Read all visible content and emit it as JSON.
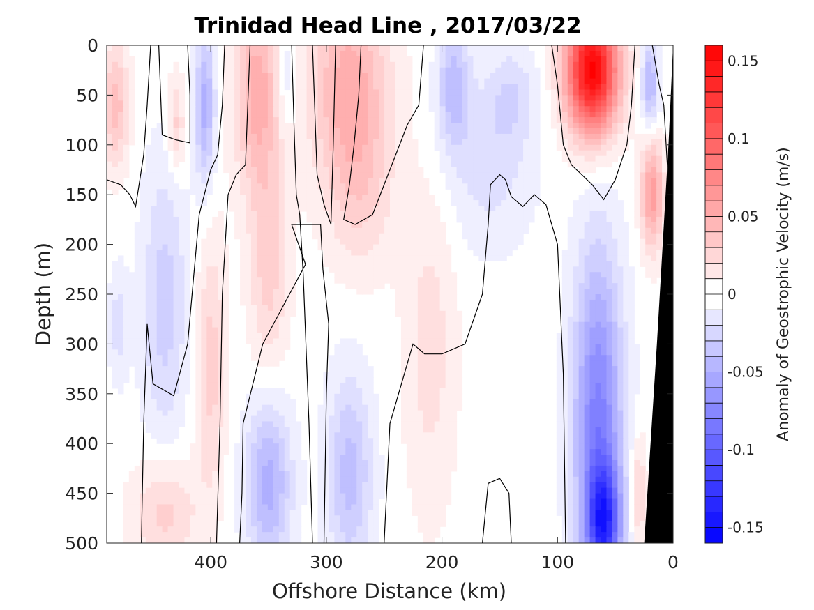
{
  "chart_data": {
    "type": "heatmap",
    "title": "Trinidad Head Line , 2017/03/22",
    "xlabel": "Offshore Distance (km)",
    "ylabel": "Depth (m)",
    "xlim": [
      490,
      0
    ],
    "ylim": [
      0,
      500
    ],
    "x_ticks": [
      "400",
      "300",
      "200",
      "100",
      "0"
    ],
    "y_ticks": [
      "0",
      "50",
      "100",
      "150",
      "200",
      "250",
      "300",
      "350",
      "400",
      "450",
      "500"
    ],
    "colorbar": {
      "label": "Anomaly of Geostrophic Velocity (m/s)",
      "range": [
        -0.16,
        0.16
      ],
      "levels": 32,
      "ticks": [
        "-0.15",
        "-0.1",
        "-0.05",
        "0",
        "0.05",
        "0.1",
        "0.15"
      ],
      "negative_color": "#0000ff",
      "zero_color": "#ffffff",
      "positive_color": "#ff0000"
    },
    "anomaly_features": [
      {
        "x": 482,
        "depth": 60,
        "value": 0.04,
        "sx": 8,
        "sd": 45
      },
      {
        "x": 430,
        "depth": 80,
        "value": 0.03,
        "sx": 5,
        "sd": 35
      },
      {
        "x": 405,
        "depth": 60,
        "value": -0.05,
        "sx": 6,
        "sd": 55
      },
      {
        "x": 360,
        "depth": 45,
        "value": 0.05,
        "sx": 14,
        "sd": 70
      },
      {
        "x": 350,
        "depth": 220,
        "value": 0.03,
        "sx": 12,
        "sd": 80
      },
      {
        "x": 335,
        "depth": 30,
        "value": -0.02,
        "sx": 6,
        "sd": 40
      },
      {
        "x": 280,
        "depth": 40,
        "value": 0.05,
        "sx": 24,
        "sd": 75
      },
      {
        "x": 270,
        "depth": 150,
        "value": 0.02,
        "sx": 20,
        "sd": 60
      },
      {
        "x": 190,
        "depth": 40,
        "value": -0.04,
        "sx": 10,
        "sd": 45
      },
      {
        "x": 160,
        "depth": 120,
        "value": -0.02,
        "sx": 28,
        "sd": 60
      },
      {
        "x": 140,
        "depth": 50,
        "value": -0.02,
        "sx": 15,
        "sd": 35
      },
      {
        "x": 70,
        "depth": 25,
        "value": 0.16,
        "sx": 16,
        "sd": 45
      },
      {
        "x": 65,
        "depth": 380,
        "value": -0.08,
        "sx": 15,
        "sd": 120
      },
      {
        "x": 60,
        "depth": 480,
        "value": -0.1,
        "sx": 10,
        "sd": 40
      },
      {
        "x": 20,
        "depth": 40,
        "value": -0.05,
        "sx": 5,
        "sd": 30
      },
      {
        "x": 18,
        "depth": 150,
        "value": 0.06,
        "sx": 7,
        "sd": 40
      },
      {
        "x": 440,
        "depth": 260,
        "value": -0.03,
        "sx": 14,
        "sd": 100
      },
      {
        "x": 440,
        "depth": 470,
        "value": 0.03,
        "sx": 20,
        "sd": 40
      },
      {
        "x": 400,
        "depth": 320,
        "value": 0.03,
        "sx": 9,
        "sd": 90
      },
      {
        "x": 350,
        "depth": 440,
        "value": -0.05,
        "sx": 14,
        "sd": 60
      },
      {
        "x": 280,
        "depth": 430,
        "value": -0.04,
        "sx": 14,
        "sd": 70
      },
      {
        "x": 210,
        "depth": 300,
        "value": 0.02,
        "sx": 16,
        "sd": 120
      },
      {
        "x": 480,
        "depth": 280,
        "value": -0.02,
        "sx": 6,
        "sd": 40
      },
      {
        "x": 30,
        "depth": 450,
        "value": 0.03,
        "sx": 5,
        "sd": 40
      }
    ],
    "zero_contours": [
      {
        "name": "c1",
        "points": [
          [
            490,
            135
          ],
          [
            478,
            140
          ],
          [
            470,
            150
          ],
          [
            465,
            162
          ],
          [
            462,
            140
          ],
          [
            458,
            110
          ],
          [
            455,
            60
          ],
          [
            452,
            0
          ]
        ]
      },
      {
        "name": "c2",
        "points": [
          [
            445,
            0
          ],
          [
            443,
            60
          ],
          [
            442,
            90
          ],
          [
            430,
            95
          ],
          [
            418,
            98
          ],
          [
            418,
            50
          ],
          [
            420,
            0
          ]
        ]
      },
      {
        "name": "c3",
        "points": [
          [
            460,
            500
          ],
          [
            458,
            380
          ],
          [
            455,
            280
          ],
          [
            450,
            340
          ],
          [
            432,
            352
          ],
          [
            420,
            300
          ],
          [
            410,
            170
          ],
          [
            400,
            125
          ],
          [
            394,
            110
          ],
          [
            390,
            60
          ],
          [
            388,
            0
          ]
        ]
      },
      {
        "name": "c4",
        "points": [
          [
            330,
            0
          ],
          [
            328,
            80
          ],
          [
            326,
            150
          ],
          [
            323,
            170
          ],
          [
            320,
            230
          ],
          [
            315,
            380
          ],
          [
            312,
            500
          ]
        ]
      },
      {
        "name": "c5",
        "points": [
          [
            395,
            500
          ],
          [
            392,
            380
          ],
          [
            390,
            250
          ],
          [
            385,
            150
          ],
          [
            378,
            130
          ],
          [
            370,
            120
          ],
          [
            368,
            60
          ],
          [
            366,
            0
          ]
        ]
      },
      {
        "name": "c6",
        "points": [
          [
            302,
            500
          ],
          [
            300,
            350
          ],
          [
            298,
            280
          ],
          [
            303,
            225
          ],
          [
            305,
            180
          ],
          [
            330,
            180
          ],
          [
            318,
            220
          ],
          [
            355,
            300
          ],
          [
            372,
            380
          ],
          [
            373,
            450
          ],
          [
            375,
            500
          ]
        ]
      },
      {
        "name": "c7",
        "points": [
          [
            312,
            0
          ],
          [
            308,
            130
          ],
          [
            302,
            160
          ],
          [
            296,
            180
          ],
          [
            294,
            100
          ],
          [
            292,
            0
          ]
        ]
      },
      {
        "name": "c8",
        "points": [
          [
            250,
            500
          ],
          [
            245,
            380
          ],
          [
            225,
            300
          ],
          [
            215,
            310
          ],
          [
            200,
            310
          ],
          [
            180,
            300
          ],
          [
            165,
            250
          ],
          [
            160,
            180
          ],
          [
            158,
            140
          ],
          [
            150,
            130
          ],
          [
            145,
            135
          ],
          [
            140,
            152
          ],
          [
            130,
            162
          ],
          [
            120,
            150
          ],
          [
            110,
            160
          ],
          [
            100,
            200
          ],
          [
            95,
            330
          ],
          [
            93,
            500
          ]
        ]
      },
      {
        "name": "c9",
        "points": [
          [
            140,
            500
          ],
          [
            142,
            450
          ],
          [
            150,
            435
          ],
          [
            160,
            440
          ],
          [
            165,
            500
          ]
        ]
      },
      {
        "name": "c10",
        "points": [
          [
            216,
            0
          ],
          [
            220,
            60
          ],
          [
            230,
            80
          ],
          [
            240,
            110
          ],
          [
            250,
            140
          ],
          [
            260,
            170
          ],
          [
            275,
            180
          ],
          [
            285,
            175
          ],
          [
            280,
            140
          ],
          [
            276,
            100
          ],
          [
            272,
            50
          ],
          [
            270,
            0
          ]
        ]
      },
      {
        "name": "c11",
        "points": [
          [
            105,
            0
          ],
          [
            100,
            40
          ],
          [
            95,
            100
          ],
          [
            88,
            120
          ],
          [
            70,
            140
          ],
          [
            60,
            155
          ],
          [
            50,
            135
          ],
          [
            40,
            100
          ],
          [
            36,
            60
          ],
          [
            33,
            0
          ]
        ]
      },
      {
        "name": "c12",
        "points": [
          [
            18,
            0
          ],
          [
            12,
            40
          ],
          [
            8,
            60
          ],
          [
            5,
            120
          ],
          [
            4,
            200
          ],
          [
            3,
            280
          ],
          [
            2,
            330
          ]
        ]
      }
    ],
    "shelf": {
      "label": "",
      "points": [
        [
          0,
          0
        ],
        [
          0,
          500
        ],
        [
          25,
          500
        ],
        [
          14,
          300
        ],
        [
          4,
          100
        ],
        [
          0,
          0
        ]
      ]
    }
  }
}
